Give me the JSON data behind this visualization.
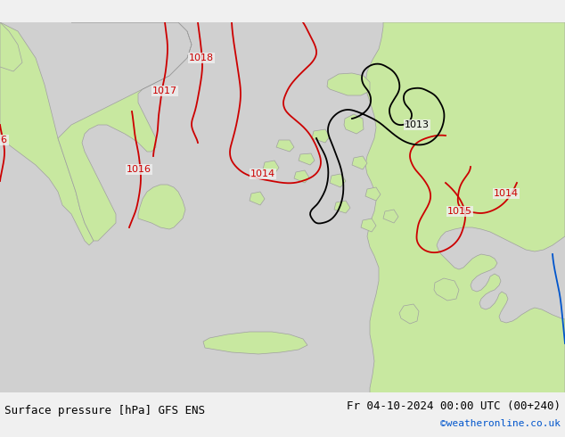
{
  "title_left": "Surface pressure [hPa] GFS ENS",
  "title_right": "Fr 04-10-2024 00:00 UTC (00+240)",
  "credit": "©weatheronline.co.uk",
  "bg_color": "#e8e8e8",
  "land_color": "#c8e8a0",
  "sea_color": "#d8d8d8",
  "contour_color_red": "#cc0000",
  "contour_color_black": "#000000",
  "contour_color_blue": "#0055cc",
  "contour_labels": [
    1013,
    1014,
    1015,
    1016,
    1017,
    1018
  ],
  "font_size_bottom": 9,
  "font_size_credit": 8
}
